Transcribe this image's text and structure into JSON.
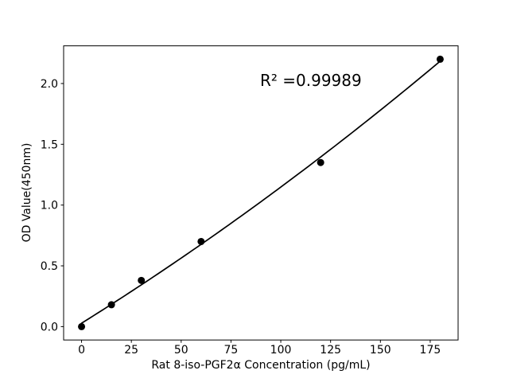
{
  "chart_data": {
    "type": "scatter",
    "title": "",
    "xlabel": "Rat 8-iso-PGF2α Concentration (pg/mL)",
    "ylabel": "OD Value(450nm)",
    "x": [
      0,
      15,
      30,
      60,
      120,
      180
    ],
    "y": [
      0.0,
      0.18,
      0.38,
      0.7,
      1.35,
      2.2
    ],
    "fit_line": {
      "kind": "quadratic",
      "coeffs": {
        "a": 9.7e-06,
        "b": 0.01023,
        "c": 0.028
      },
      "x_start": 0,
      "x_end": 180,
      "r_squared": 0.99989
    },
    "annotation": {
      "text": "R² =0.99989",
      "x": 90,
      "y": 2.0
    },
    "xlim": [
      -9,
      189
    ],
    "ylim": [
      -0.11,
      2.31
    ],
    "xticks": {
      "values": [
        0,
        25,
        50,
        75,
        100,
        125,
        150,
        175
      ],
      "labels": [
        "0",
        "25",
        "50",
        "75",
        "100",
        "125",
        "150",
        "175"
      ]
    },
    "yticks": {
      "values": [
        0.0,
        0.5,
        1.0,
        1.5,
        2.0
      ],
      "labels": [
        "0.0",
        "0.5",
        "1.0",
        "1.5",
        "2.0"
      ]
    },
    "grid": false,
    "legend": null,
    "marker": {
      "shape": "circle",
      "radius_px": 4.5
    },
    "colors": {
      "marker": "#000000",
      "line": "#000000",
      "axis": "#000000",
      "text": "#000000",
      "background": "#ffffff"
    }
  }
}
